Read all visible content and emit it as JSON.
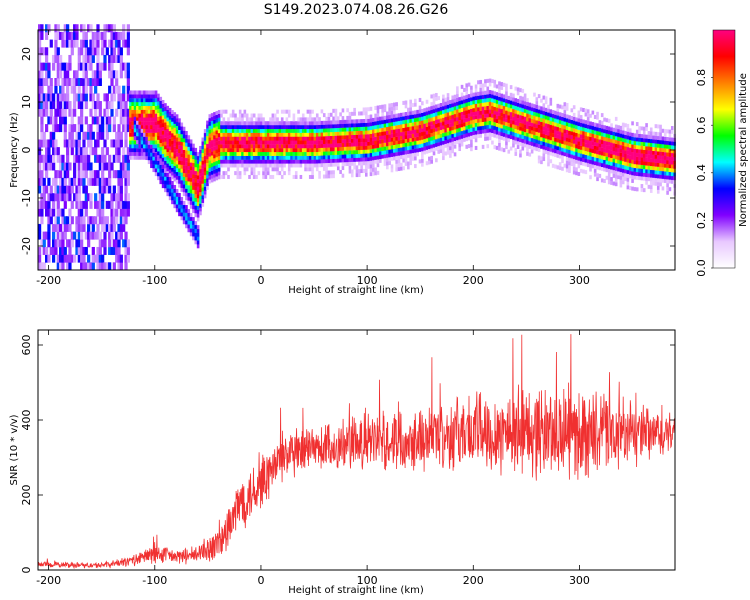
{
  "figure": {
    "title": "S149.2023.074.08.26.G26"
  },
  "chart_data": [
    {
      "type": "heatmap",
      "xlabel": "Height of straight line (km)",
      "ylabel": "Frequency (Hz)",
      "xlim": [
        -210,
        390
      ],
      "ylim": [
        -25,
        25
      ],
      "xticks": [
        -200,
        -100,
        0,
        100,
        200,
        300
      ],
      "yticks": [
        -20,
        -10,
        0,
        10,
        20
      ],
      "colorbar": {
        "label": "Normalized spectral amplitude",
        "range": [
          0,
          1
        ],
        "ticks": [
          0.0,
          0.2,
          0.4,
          0.6,
          0.8
        ],
        "colors": [
          "#ffffff",
          "#e8c8ff",
          "#8000ff",
          "#0000ff",
          "#00ffff",
          "#00ff00",
          "#ffff00",
          "#ff8000",
          "#ff0000",
          "#ff0080"
        ]
      },
      "ridge": {
        "x": [
          -100,
          -90,
          -80,
          -70,
          -60,
          -50,
          -40,
          -20,
          0,
          50,
          100,
          150,
          200,
          215,
          250,
          300,
          350,
          390
        ],
        "freq": [
          5,
          2,
          0,
          -4,
          -8,
          0,
          1,
          1,
          1,
          1,
          1.5,
          3.5,
          7,
          7.5,
          5,
          1.5,
          -1.5,
          -2.5
        ]
      },
      "noise_region": [
        -210,
        -125
      ],
      "grid": false
    },
    {
      "type": "line",
      "xlabel": "Height of straight line (km)",
      "ylabel": "SNR (10 * v/v)",
      "xlim": [
        -210,
        390
      ],
      "ylim": [
        0,
        640
      ],
      "xticks": [
        -200,
        -100,
        0,
        100,
        200,
        300
      ],
      "yticks": [
        0,
        200,
        400,
        600
      ],
      "color": "#f03030",
      "envelope": {
        "x": [
          -210,
          -150,
          -120,
          -100,
          -80,
          -60,
          -40,
          -30,
          -20,
          0,
          20,
          50,
          100,
          150,
          200,
          250,
          300,
          350,
          390
        ],
        "mean": [
          15,
          12,
          25,
          45,
          35,
          40,
          70,
          110,
          180,
          230,
          300,
          320,
          340,
          355,
          370,
          370,
          365,
          360,
          360
        ],
        "spread": [
          8,
          8,
          15,
          30,
          20,
          25,
          50,
          70,
          80,
          80,
          70,
          70,
          80,
          90,
          110,
          130,
          130,
          90,
          60
        ]
      },
      "grid": false
    }
  ]
}
